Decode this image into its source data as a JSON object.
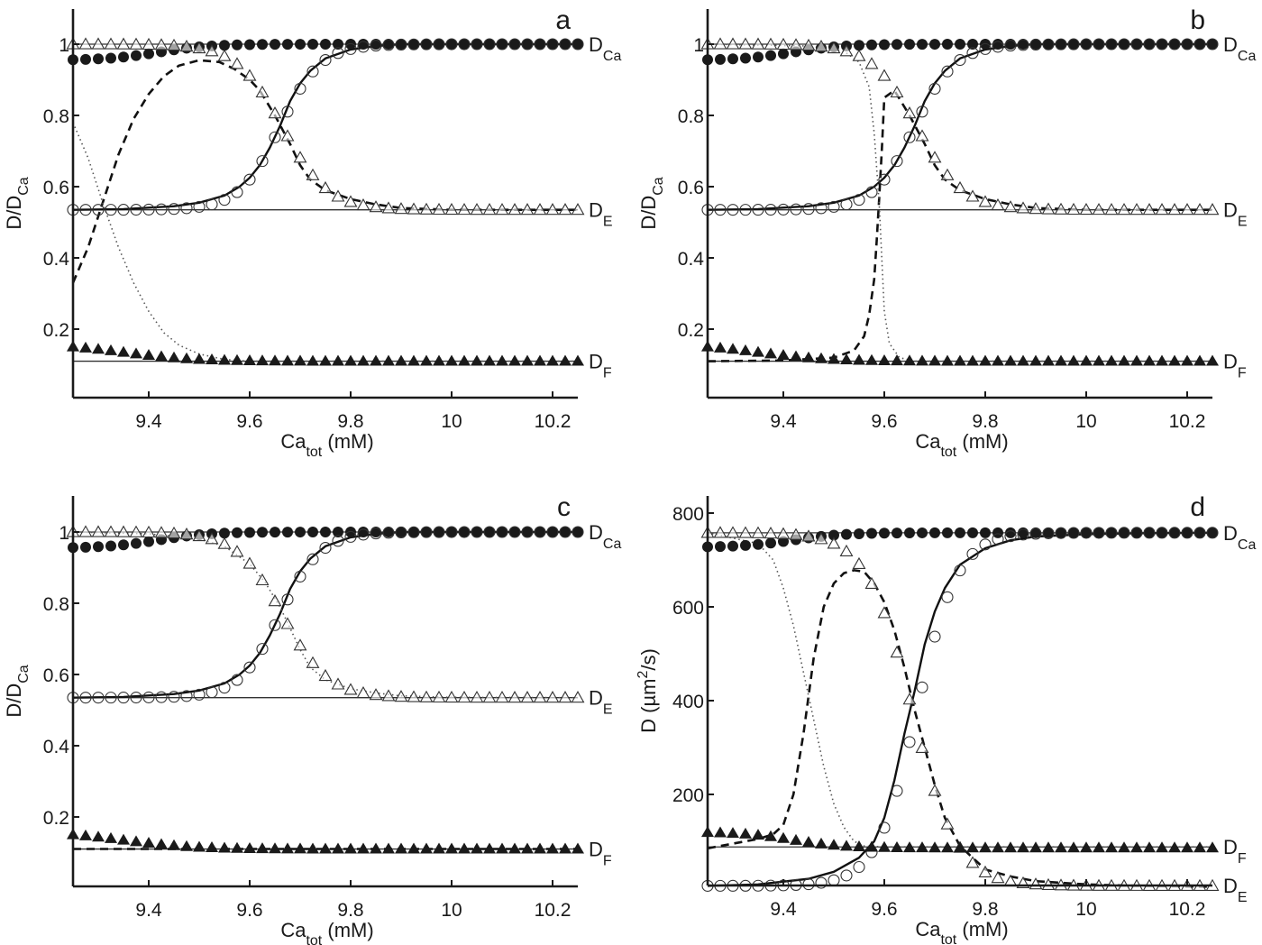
{
  "figure": {
    "panels": [
      "a",
      "b",
      "c",
      "d"
    ]
  },
  "chart_data": [
    {
      "panel": "a",
      "type": "line",
      "title": "",
      "panel_letter": "a",
      "xlabel": "Ca_tot (mM)",
      "xlabel_main": "Ca",
      "xlabel_sub": "tot",
      "xlabel_unit": " (mM)",
      "ylabel": "D/D_Ca",
      "ylabel_main": "D/D",
      "ylabel_sub": "Ca",
      "xlim": [
        9.25,
        10.25
      ],
      "ylim": [
        0.01,
        1.1
      ],
      "xticks": [
        9.4,
        9.6,
        9.8,
        10,
        10.2
      ],
      "xtick_labels": [
        "9.4",
        "9.6",
        "9.8",
        "10",
        "10.2"
      ],
      "yticks": [
        0.2,
        0.4,
        0.6,
        0.8,
        1
      ],
      "ytick_labels": [
        "0.2",
        "0.4",
        "0.6",
        "0.8",
        "1"
      ],
      "grid": false,
      "right_labels": [
        {
          "main": "D",
          "sub": "Ca",
          "y": 1.0
        },
        {
          "main": "D",
          "sub": "E",
          "y": 0.535
        },
        {
          "main": "D",
          "sub": "F",
          "y": 0.11
        }
      ],
      "reference_lines": [
        1.0,
        0.535,
        0.11
      ],
      "marker_x_start": 9.25,
      "marker_x_step": 0.025,
      "marker_count": 41,
      "series": [
        {
          "name": "filled circles (Ca)",
          "marker": "filled-circle",
          "midpoint": 9.42,
          "width": 0.05,
          "low": 0.955,
          "high": 1.0,
          "direction": "up"
        },
        {
          "name": "open triangles",
          "marker": "open-triangle",
          "midpoint": 9.665,
          "width": 0.045,
          "low": 0.535,
          "high": 1.0,
          "direction": "down"
        },
        {
          "name": "open circles",
          "marker": "open-circle",
          "midpoint": 9.66,
          "width": 0.04,
          "low": 0.535,
          "high": 1.0,
          "direction": "up"
        },
        {
          "name": "filled triangles",
          "marker": "filled-triangle",
          "midpoint": 9.35,
          "width": 0.07,
          "low": 0.11,
          "high": 0.16,
          "direction": "down"
        }
      ],
      "curves": [
        {
          "name": "solid fit",
          "style": "solid",
          "x": [
            9.25,
            9.35,
            9.45,
            9.5,
            9.55,
            9.58,
            9.6,
            9.62,
            9.64,
            9.66,
            9.68,
            9.7,
            9.72,
            9.75,
            9.8,
            9.85,
            9.9,
            10,
            10.25
          ],
          "y": [
            0.535,
            0.537,
            0.545,
            0.555,
            0.575,
            0.6,
            0.625,
            0.66,
            0.71,
            0.77,
            0.84,
            0.89,
            0.925,
            0.96,
            0.985,
            0.995,
            1.0,
            1.0,
            1.0
          ]
        },
        {
          "name": "dashed",
          "style": "dashed",
          "x": [
            9.25,
            9.28,
            9.31,
            9.34,
            9.37,
            9.4,
            9.43,
            9.46,
            9.5,
            9.54,
            9.57,
            9.6,
            9.62,
            9.65,
            9.68,
            9.7,
            9.72,
            9.75,
            9.8,
            9.85,
            9.9,
            10,
            10.25
          ],
          "y": [
            0.33,
            0.43,
            0.56,
            0.69,
            0.79,
            0.86,
            0.91,
            0.94,
            0.955,
            0.95,
            0.93,
            0.9,
            0.87,
            0.8,
            0.72,
            0.66,
            0.62,
            0.59,
            0.565,
            0.55,
            0.54,
            0.535,
            0.535
          ]
        },
        {
          "name": "dotted",
          "style": "dotted",
          "x": [
            9.25,
            9.28,
            9.31,
            9.34,
            9.37,
            9.4,
            9.43,
            9.46,
            9.5,
            9.55,
            9.6,
            9.7,
            10.25
          ],
          "y": [
            0.78,
            0.68,
            0.55,
            0.43,
            0.33,
            0.25,
            0.19,
            0.155,
            0.13,
            0.115,
            0.11,
            0.11,
            0.11
          ]
        }
      ]
    },
    {
      "panel": "b",
      "type": "line",
      "title": "",
      "panel_letter": "b",
      "xlabel": "Ca_tot (mM)",
      "xlabel_main": "Ca",
      "xlabel_sub": "tot",
      "xlabel_unit": " (mM)",
      "ylabel": "D/D_Ca",
      "ylabel_main": "D/D",
      "ylabel_sub": "Ca",
      "xlim": [
        9.25,
        10.25
      ],
      "ylim": [
        0.01,
        1.1
      ],
      "xticks": [
        9.4,
        9.6,
        9.8,
        10,
        10.2
      ],
      "xtick_labels": [
        "9.4",
        "9.6",
        "9.8",
        "10",
        "10.2"
      ],
      "yticks": [
        0.2,
        0.4,
        0.6,
        0.8,
        1
      ],
      "ytick_labels": [
        "0.2",
        "0.4",
        "0.6",
        "0.8",
        "1"
      ],
      "grid": false,
      "right_labels": [
        {
          "main": "D",
          "sub": "Ca",
          "y": 1.0
        },
        {
          "main": "D",
          "sub": "E",
          "y": 0.535
        },
        {
          "main": "D",
          "sub": "F",
          "y": 0.11
        }
      ],
      "reference_lines": [
        1.0,
        0.535,
        0.11
      ],
      "marker_x_start": 9.25,
      "marker_x_step": 0.025,
      "marker_count": 41,
      "series": [
        {
          "name": "filled circles (Ca)",
          "marker": "filled-circle",
          "midpoint": 9.42,
          "width": 0.05,
          "low": 0.955,
          "high": 1.0,
          "direction": "up"
        },
        {
          "name": "open triangles",
          "marker": "open-triangle",
          "midpoint": 9.665,
          "width": 0.045,
          "low": 0.535,
          "high": 1.0,
          "direction": "down"
        },
        {
          "name": "open circles",
          "marker": "open-circle",
          "midpoint": 9.66,
          "width": 0.04,
          "low": 0.535,
          "high": 1.0,
          "direction": "up"
        },
        {
          "name": "filled triangles",
          "marker": "filled-triangle",
          "midpoint": 9.35,
          "width": 0.07,
          "low": 0.11,
          "high": 0.16,
          "direction": "down"
        }
      ],
      "curves": [
        {
          "name": "solid fit",
          "style": "solid",
          "x": [
            9.25,
            9.35,
            9.45,
            9.5,
            9.55,
            9.58,
            9.6,
            9.62,
            9.64,
            9.66,
            9.68,
            9.7,
            9.72,
            9.75,
            9.8,
            9.85,
            9.9,
            10,
            10.25
          ],
          "y": [
            0.535,
            0.537,
            0.545,
            0.555,
            0.575,
            0.6,
            0.625,
            0.66,
            0.71,
            0.77,
            0.84,
            0.89,
            0.925,
            0.96,
            0.985,
            0.995,
            1.0,
            1.0,
            1.0
          ]
        },
        {
          "name": "dashed",
          "style": "dashed",
          "x": [
            9.25,
            9.4,
            9.5,
            9.54,
            9.56,
            9.57,
            9.58,
            9.585,
            9.59,
            9.595,
            9.6,
            9.61,
            9.62,
            9.65,
            9.68,
            9.7,
            9.72,
            9.75,
            9.8,
            9.85,
            9.9,
            10,
            10.25
          ],
          "y": [
            0.11,
            0.112,
            0.12,
            0.14,
            0.18,
            0.24,
            0.34,
            0.45,
            0.57,
            0.7,
            0.85,
            0.86,
            0.87,
            0.8,
            0.72,
            0.66,
            0.62,
            0.59,
            0.565,
            0.55,
            0.54,
            0.535,
            0.535
          ]
        },
        {
          "name": "dotted",
          "style": "dotted",
          "x": [
            9.25,
            9.45,
            9.52,
            9.55,
            9.57,
            9.58,
            9.59,
            9.595,
            9.6,
            9.61,
            9.63,
            9.66,
            9.7,
            10.25
          ],
          "y": [
            1.0,
            0.995,
            0.98,
            0.95,
            0.88,
            0.75,
            0.55,
            0.4,
            0.25,
            0.16,
            0.12,
            0.11,
            0.11,
            0.11
          ]
        }
      ]
    },
    {
      "panel": "c",
      "type": "line",
      "title": "",
      "panel_letter": "c",
      "xlabel": "Ca_tot (mM)",
      "xlabel_main": "Ca",
      "xlabel_sub": "tot",
      "xlabel_unit": " (mM)",
      "ylabel": "D/D_Ca",
      "ylabel_main": "D/D",
      "ylabel_sub": "Ca",
      "xlim": [
        9.25,
        10.25
      ],
      "ylim": [
        0.01,
        1.1
      ],
      "xticks": [
        9.4,
        9.6,
        9.8,
        10,
        10.2
      ],
      "xtick_labels": [
        "9.4",
        "9.6",
        "9.8",
        "10",
        "10.2"
      ],
      "yticks": [
        0.2,
        0.4,
        0.6,
        0.8,
        1
      ],
      "ytick_labels": [
        "0.2",
        "0.4",
        "0.6",
        "0.8",
        "1"
      ],
      "grid": false,
      "right_labels": [
        {
          "main": "D",
          "sub": "Ca",
          "y": 1.0
        },
        {
          "main": "D",
          "sub": "E",
          "y": 0.535
        },
        {
          "main": "D",
          "sub": "F",
          "y": 0.11
        }
      ],
      "reference_lines": [
        1.0,
        0.535,
        0.11
      ],
      "marker_x_start": 9.25,
      "marker_x_step": 0.025,
      "marker_count": 41,
      "series": [
        {
          "name": "filled circles (Ca)",
          "marker": "filled-circle",
          "midpoint": 9.42,
          "width": 0.05,
          "low": 0.955,
          "high": 1.0,
          "direction": "up"
        },
        {
          "name": "open triangles",
          "marker": "open-triangle",
          "midpoint": 9.665,
          "width": 0.045,
          "low": 0.535,
          "high": 1.0,
          "direction": "down"
        },
        {
          "name": "open circles",
          "marker": "open-circle",
          "midpoint": 9.66,
          "width": 0.04,
          "low": 0.535,
          "high": 1.0,
          "direction": "up"
        },
        {
          "name": "filled triangles",
          "marker": "filled-triangle",
          "midpoint": 9.35,
          "width": 0.07,
          "low": 0.11,
          "high": 0.16,
          "direction": "down"
        }
      ],
      "curves": [
        {
          "name": "solid fit",
          "style": "solid",
          "x": [
            9.25,
            9.35,
            9.45,
            9.5,
            9.55,
            9.58,
            9.6,
            9.62,
            9.64,
            9.66,
            9.68,
            9.7,
            9.72,
            9.75,
            9.8,
            9.85,
            9.9,
            10,
            10.25
          ],
          "y": [
            0.535,
            0.537,
            0.545,
            0.555,
            0.575,
            0.6,
            0.625,
            0.66,
            0.71,
            0.77,
            0.84,
            0.89,
            0.925,
            0.96,
            0.985,
            0.995,
            1.0,
            1.0,
            1.0
          ]
        },
        {
          "name": "dotted",
          "style": "dotted",
          "x": [
            9.25,
            9.4,
            9.5,
            9.55,
            9.6,
            9.63,
            9.66,
            9.68,
            9.7,
            9.72,
            9.75,
            9.8,
            9.85,
            9.9,
            10,
            10.25
          ],
          "y": [
            1.0,
            0.995,
            0.98,
            0.96,
            0.91,
            0.86,
            0.79,
            0.73,
            0.67,
            0.62,
            0.585,
            0.56,
            0.548,
            0.54,
            0.536,
            0.535
          ]
        },
        {
          "name": "dashed",
          "style": "dashed",
          "x": [
            9.25,
            9.4,
            9.5,
            9.6,
            10.25
          ],
          "y": [
            0.11,
            0.11,
            0.11,
            0.11,
            0.11
          ]
        }
      ]
    },
    {
      "panel": "d",
      "type": "line",
      "title": "",
      "panel_letter": "d",
      "xlabel": "Ca_tot (mM)",
      "xlabel_main": "Ca",
      "xlabel_sub": "tot",
      "xlabel_unit": " (mM)",
      "ylabel": "D (µm^2/s)",
      "ylabel_main": "D (µm",
      "ylabel_sup": "2",
      "ylabel_tail": "/s)",
      "xlim": [
        9.25,
        10.25
      ],
      "ylim": [
        0,
        835
      ],
      "xticks": [
        9.4,
        9.6,
        9.8,
        10,
        10.2
      ],
      "xtick_labels": [
        "9.4",
        "9.6",
        "9.8",
        "10",
        "10.2"
      ],
      "yticks": [
        200,
        400,
        600,
        800
      ],
      "ytick_labels": [
        "200",
        "400",
        "600",
        "800"
      ],
      "grid": false,
      "right_labels": [
        {
          "main": "D",
          "sub": "Ca",
          "y": 758
        },
        {
          "main": "D",
          "sub": "F",
          "y": 88
        },
        {
          "main": "D",
          "sub": "E",
          "y": 6
        }
      ],
      "reference_lines": [
        758,
        88
      ],
      "marker_x_start": 9.25,
      "marker_x_step": 0.025,
      "marker_count": 41,
      "series": [
        {
          "name": "filled circles (Ca)",
          "marker": "filled-circle",
          "midpoint": 9.42,
          "width": 0.05,
          "low": 727,
          "high": 758,
          "direction": "up"
        },
        {
          "name": "open triangles",
          "marker": "open-triangle",
          "midpoint": 9.655,
          "width": 0.045,
          "low": 5,
          "high": 758,
          "direction": "down"
        },
        {
          "name": "open circles",
          "marker": "open-circle",
          "midpoint": 9.665,
          "width": 0.04,
          "low": 5,
          "high": 758,
          "direction": "up"
        },
        {
          "name": "filled triangles",
          "marker": "filled-triangle",
          "midpoint": 9.42,
          "width": 0.05,
          "low": 86,
          "high": 120,
          "direction": "down"
        }
      ],
      "curves": [
        {
          "name": "solid fit",
          "style": "solid",
          "x": [
            9.25,
            9.35,
            9.45,
            9.5,
            9.55,
            9.58,
            9.6,
            9.62,
            9.64,
            9.66,
            9.68,
            9.7,
            9.72,
            9.75,
            9.8,
            9.85,
            9.9,
            10,
            10.1,
            10.25
          ],
          "y": [
            5,
            8,
            20,
            35,
            65,
            100,
            150,
            230,
            330,
            420,
            520,
            590,
            640,
            690,
            725,
            742,
            750,
            755,
            757,
            758
          ]
        },
        {
          "name": "dashed",
          "style": "dashed",
          "x": [
            9.25,
            9.3,
            9.35,
            9.38,
            9.4,
            9.42,
            9.44,
            9.46,
            9.48,
            9.5,
            9.52,
            9.54,
            9.56,
            9.58,
            9.6,
            9.62,
            9.64,
            9.66,
            9.68,
            9.7,
            9.72,
            9.75,
            9.78,
            9.8,
            9.85,
            9.9,
            10,
            10.1,
            10.25
          ],
          "y": [
            85,
            95,
            105,
            115,
            135,
            200,
            330,
            490,
            600,
            650,
            672,
            678,
            675,
            650,
            610,
            550,
            470,
            380,
            300,
            220,
            150,
            90,
            60,
            40,
            25,
            15,
            8,
            5,
            3
          ]
        },
        {
          "name": "dotted",
          "style": "dotted",
          "x": [
            9.25,
            9.35,
            9.38,
            9.4,
            9.42,
            9.44,
            9.46,
            9.48,
            9.5,
            9.52,
            9.54,
            9.56,
            9.6,
            10.25
          ],
          "y": [
            758,
            735,
            700,
            640,
            560,
            460,
            360,
            260,
            180,
            130,
            100,
            90,
            88,
            88
          ]
        }
      ]
    }
  ]
}
